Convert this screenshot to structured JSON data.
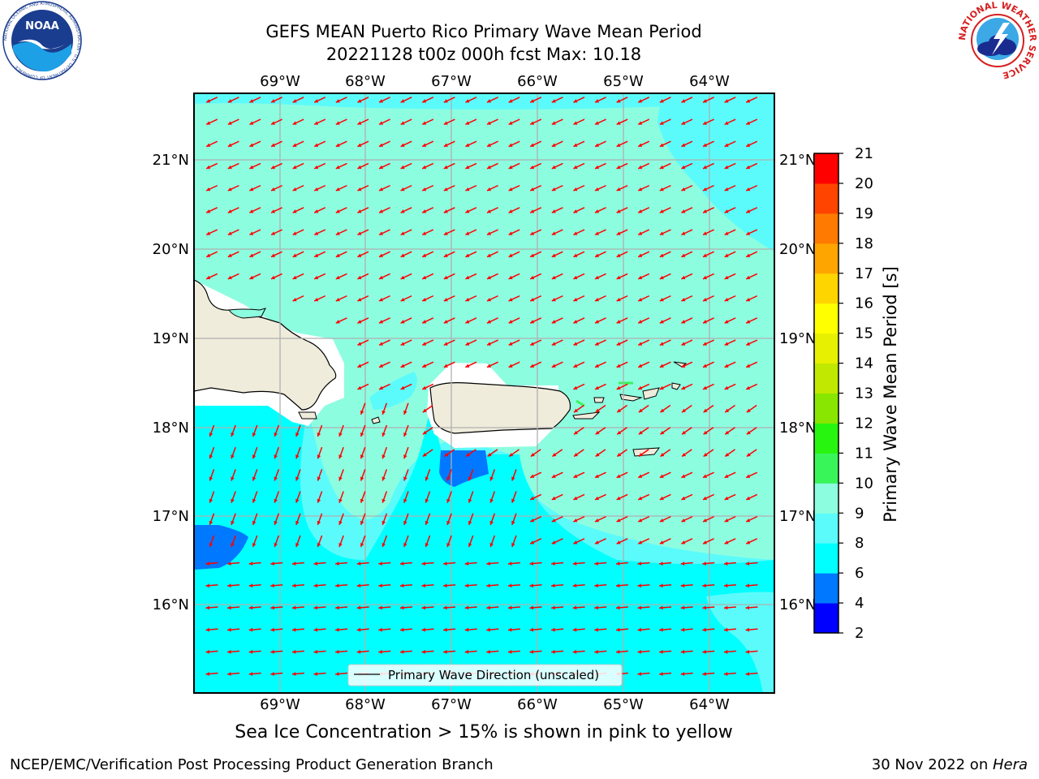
{
  "header": {
    "title_line1": "GEFS MEAN Puerto Rico Primary Wave Mean Period",
    "title_line2": "20221128 t00z 000h fcst   Max: 10.18"
  },
  "logos": {
    "noaa": {
      "text": "NOAA",
      "ring_text": "NATIONAL OCEANIC AND ATMOSPHERIC ADMINISTRATION · U.S. DEPARTMENT OF COMMERCE"
    },
    "nws": {
      "ring_text": "NATIONAL WEATHER SERVICE"
    }
  },
  "map": {
    "lon_ticks": [
      "69°W",
      "68°W",
      "67°W",
      "66°W",
      "65°W",
      "64°W"
    ],
    "lat_ticks": [
      "21°N",
      "20°N",
      "19°N",
      "18°N",
      "17°N",
      "16°N"
    ],
    "legend_label": "Primary Wave Direction (unscaled)",
    "field_colors": {
      "4_6": "#0078ff",
      "6_8": "#00ffff",
      "8_9": "#5cfbfb",
      "9_10": "#8dfde0",
      "land": "#efecdc",
      "land_border": "#000000",
      "no_data": "#ffffff",
      "arrow": "#ff0000"
    }
  },
  "colorbar": {
    "label": "Primary Wave Mean Period [s]",
    "ticks": [
      "2",
      "4",
      "6",
      "8",
      "9",
      "10",
      "11",
      "12",
      "13",
      "14",
      "15",
      "16",
      "17",
      "18",
      "19",
      "20",
      "21"
    ],
    "colors": [
      "#0000ff",
      "#0078ff",
      "#00ffff",
      "#5cfbfb",
      "#8dfde0",
      "#38f55a",
      "#28f50f",
      "#88e600",
      "#c0e800",
      "#e6f000",
      "#ffff00",
      "#ffd500",
      "#ffa500",
      "#ff7a00",
      "#ff4400",
      "#ff0000"
    ]
  },
  "footer": {
    "note": "Sea Ice Concentration > 15% is shown in pink to yellow",
    "left": "NCEP/EMC/Verification Post Processing Product Generation Branch",
    "right_prefix": "30 Nov 2022 on ",
    "right_host": "Hera"
  }
}
